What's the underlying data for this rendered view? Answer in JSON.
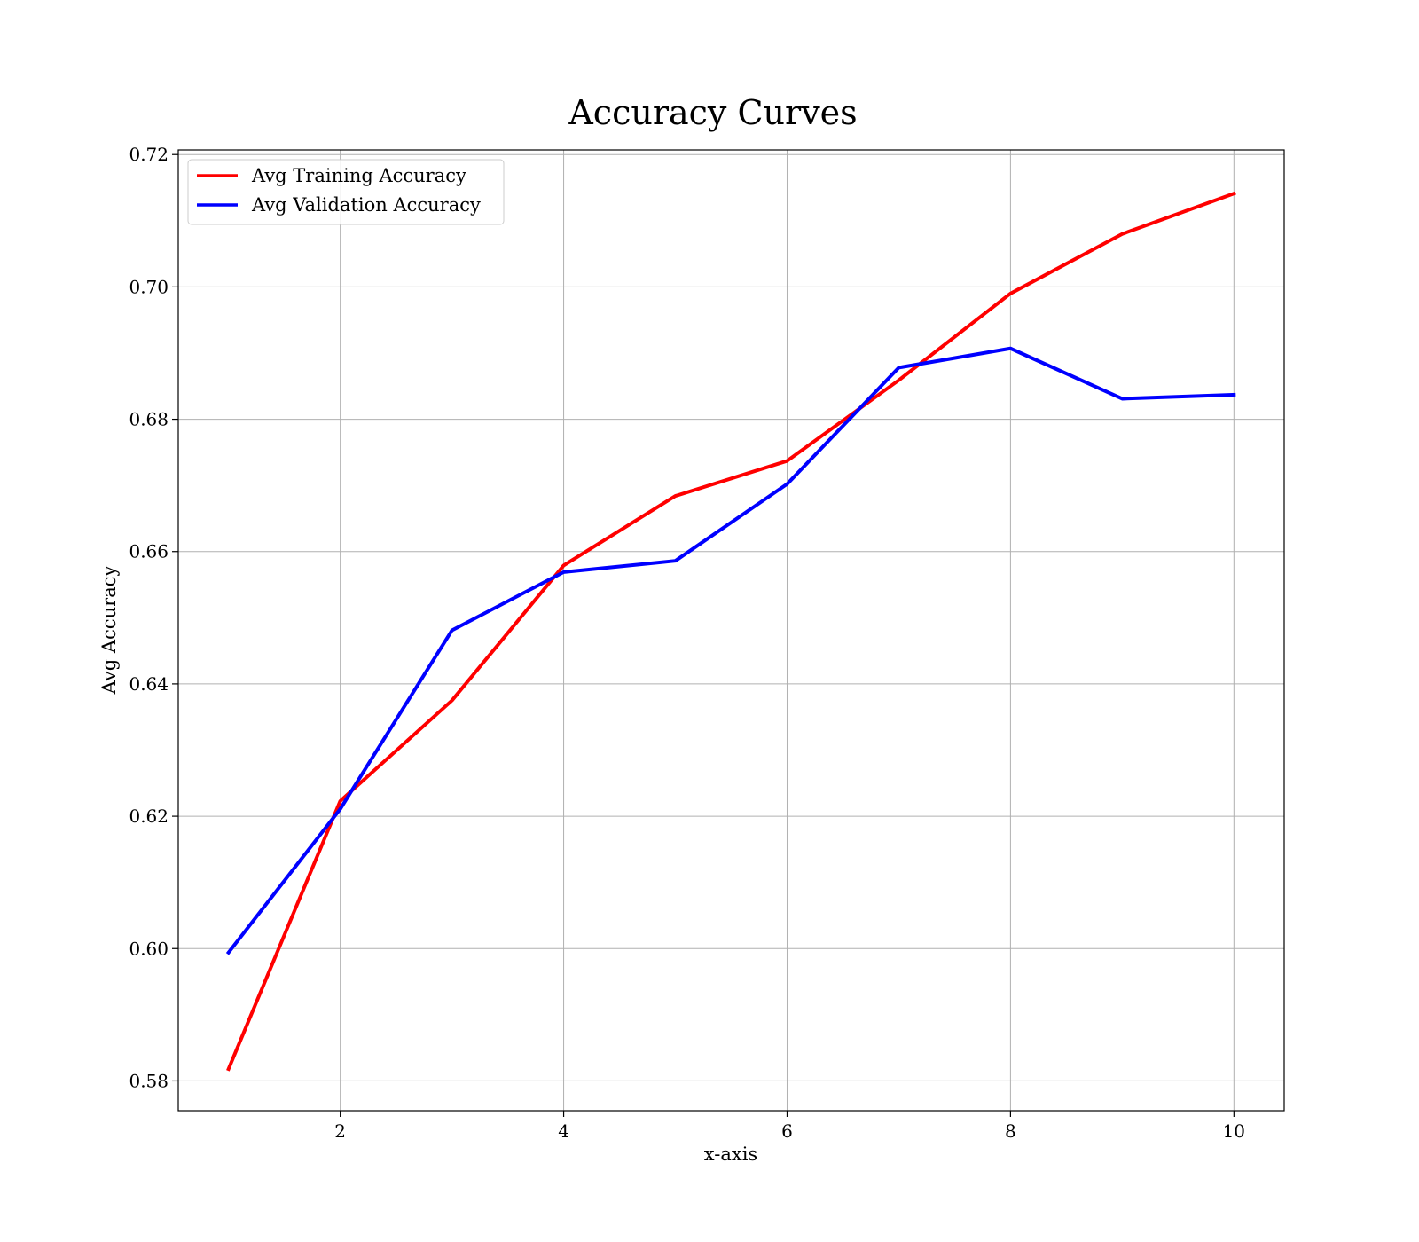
{
  "chart_data": {
    "type": "line",
    "title": "Accuracy Curves",
    "xlabel": "x-axis",
    "ylabel": "Avg Accuracy",
    "x": [
      1,
      2,
      3,
      4,
      5,
      6,
      7,
      8,
      9,
      10
    ],
    "xlim": [
      0.55,
      10.45
    ],
    "ylim": [
      0.5755,
      0.7207
    ],
    "xticks": [
      2,
      4,
      6,
      8,
      10
    ],
    "xtick_labels": [
      "2",
      "4",
      "6",
      "8",
      "10"
    ],
    "yticks": [
      0.58,
      0.6,
      0.62,
      0.64,
      0.66,
      0.68,
      0.7,
      0.72
    ],
    "ytick_labels": [
      "0.58",
      "0.60",
      "0.62",
      "0.64",
      "0.66",
      "0.68",
      "0.70",
      "0.72"
    ],
    "grid": true,
    "legend_position": "top-left",
    "series": [
      {
        "name": "Avg Training Accuracy",
        "color": "#ff0000",
        "values": [
          0.5818,
          0.6223,
          0.6375,
          0.6579,
          0.6684,
          0.6737,
          0.6859,
          0.699,
          0.708,
          0.7141
        ]
      },
      {
        "name": "Avg Validation Accuracy",
        "color": "#0000ff",
        "values": [
          0.5994,
          0.6211,
          0.6481,
          0.6569,
          0.6586,
          0.6702,
          0.6878,
          0.6907,
          0.6831,
          0.6837
        ]
      }
    ]
  }
}
